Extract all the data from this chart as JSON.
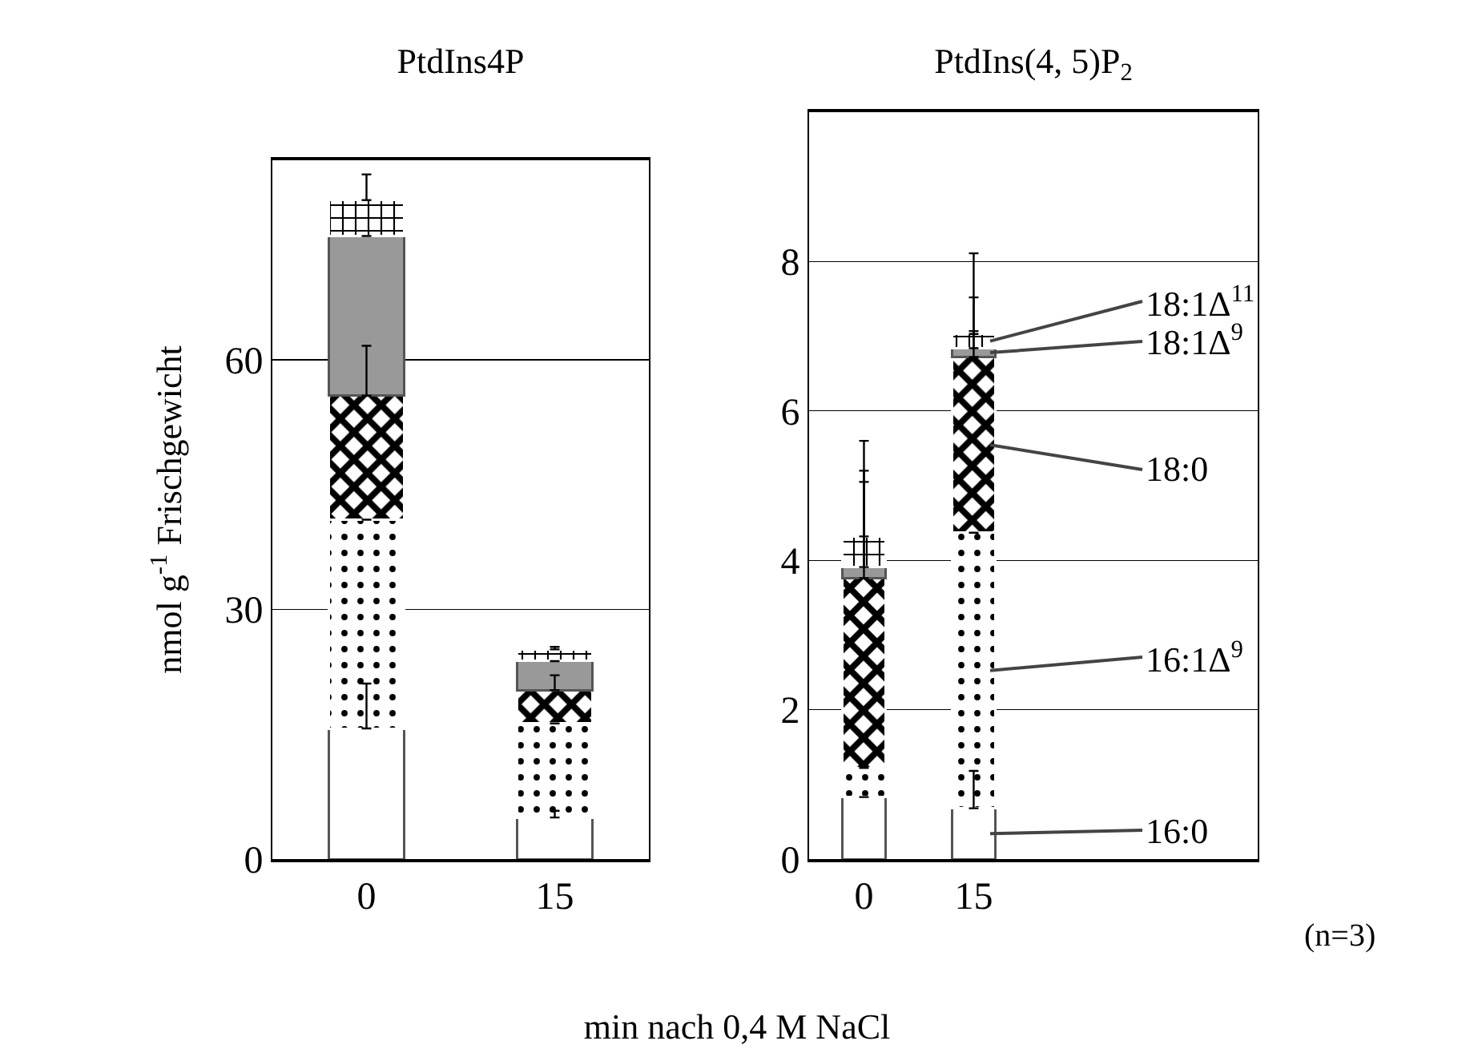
{
  "chart_data": [
    {
      "type": "bar",
      "stacked": true,
      "title": "PtdIns4P",
      "ylabel": "nmol g$^{-1}$ Frischgewicht",
      "xlabel": "min nach 0,4 M NaCl",
      "categories": [
        "0",
        "15"
      ],
      "ylim": [
        0,
        84
      ],
      "yticks": [
        0,
        30,
        60
      ],
      "grid": "y",
      "series": [
        {
          "color": "#ffffff",
          "values": [
            15.7,
            5.0
          ],
          "errors": [
            [
              15.7,
              21.1
            ],
            [
              5.0,
              5.8
            ]
          ]
        },
        {
          "color": "#ffffff",
          "values": [
            25.1,
            11.3
          ],
          "errors": [
            null,
            null
          ]
        },
        {
          "color": "#ffffff",
          "values": [
            14.9,
            4.0
          ],
          "errors": [
            [
              55.7,
              61.7
            ],
            [
              20.3,
              22.1
            ]
          ]
        },
        {
          "color": "#999999",
          "values": [
            19.2,
            3.5
          ],
          "errors": [
            null,
            null
          ]
        },
        {
          "color": "#ffffff",
          "values": [
            4.3,
            1.4
          ],
          "errors": [
            [
              79.2,
              82.3
            ],
            [
              25.2,
              25.5
            ]
          ]
        }
      ]
    },
    {
      "type": "bar",
      "stacked": true,
      "title": "PtdIns(4, 5)P$_{2}$",
      "categories": [
        "0",
        "15"
      ],
      "ylim": [
        0,
        10
      ],
      "yticks": [
        0,
        2,
        4,
        6,
        8
      ],
      "grid": "y",
      "annotations": [
        "(n=3)"
      ],
      "series": [
        {
          "name": "16:0",
          "color": "#ffffff",
          "values": [
            0.83,
            0.68
          ],
          "errors": [
            null,
            [
              0.68,
              1.18
            ]
          ]
        },
        {
          "name": "16:1Δ$^{9}$",
          "color": "#ffffff",
          "values": [
            0.39,
            3.69
          ],
          "errors": [
            null,
            null
          ]
        },
        {
          "name": "18:0",
          "color": "#ffffff",
          "values": [
            2.54,
            2.35
          ],
          "errors": [
            [
              3.76,
              5.05
            ],
            [
              6.72,
              7.07
            ]
          ]
        },
        {
          "name": "18:1Δ$^{9}$",
          "color": "#999999",
          "values": [
            0.15,
            0.12
          ],
          "errors": [
            [
              3.91,
              5.2
            ],
            [
              6.84,
              7.52
            ]
          ]
        },
        {
          "name": "18:1Δ$^{11}$",
          "color": "#ffffff",
          "values": [
            0.41,
            0.19
          ],
          "errors": [
            [
              4.32,
              5.6
            ],
            [
              7.03,
              8.11
            ]
          ]
        }
      ]
    }
  ]
}
